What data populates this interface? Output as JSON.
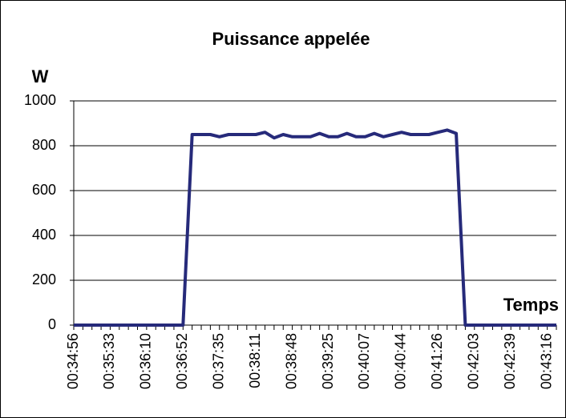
{
  "chart_data": {
    "type": "line",
    "title": "Puissance appelée",
    "y_label": "W",
    "x_label": "Temps",
    "categories": [
      "00:34:56",
      null,
      null,
      null,
      "00:35:33",
      null,
      null,
      null,
      "00:36:10",
      null,
      null,
      null,
      "00:36:52",
      null,
      null,
      null,
      "00:37:35",
      null,
      null,
      null,
      "00:38:11",
      null,
      null,
      null,
      "00:38:48",
      null,
      null,
      null,
      "00:39:25",
      null,
      null,
      null,
      "00:40:07",
      null,
      null,
      null,
      "00:40:44",
      null,
      null,
      null,
      "00:41:26",
      null,
      null,
      null,
      "00:42:03",
      null,
      null,
      null,
      "00:42:39",
      null,
      null,
      null,
      "00:43:16",
      null
    ],
    "series": [
      {
        "name": "Puissance",
        "color": "#262a7a",
        "values": [
          0,
          0,
          0,
          0,
          0,
          0,
          0,
          0,
          0,
          0,
          0,
          0,
          0,
          850,
          850,
          850,
          840,
          850,
          850,
          850,
          850,
          860,
          835,
          850,
          840,
          840,
          840,
          855,
          840,
          840,
          855,
          840,
          840,
          855,
          840,
          850,
          860,
          850,
          850,
          850,
          860,
          870,
          855,
          0,
          0,
          0,
          0,
          0,
          0,
          0,
          0,
          0,
          0,
          0
        ]
      }
    ],
    "ylim": [
      0,
      1000
    ],
    "yticks": [
      0,
      200,
      400,
      600,
      800,
      1000
    ],
    "grid": true
  }
}
